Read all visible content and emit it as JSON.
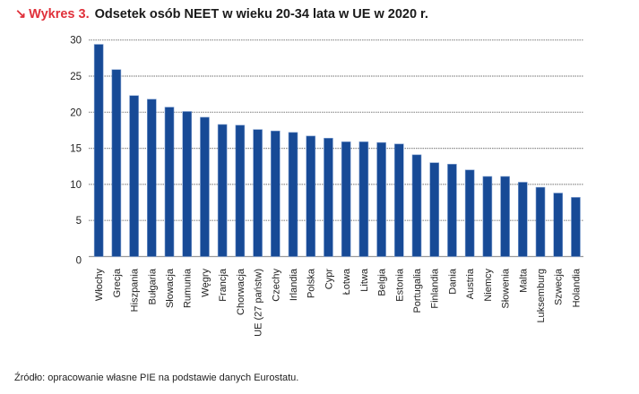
{
  "header": {
    "arrow_icon": "south-east-arrow-icon",
    "arrow_glyph": "↘",
    "figure_label": "Wykres 3.",
    "title": "Odsetek osób NEET w wieku 20-34 lata w UE w 2020 r."
  },
  "footer": {
    "source": "Źródło: opracowanie własne PIE na podstawie danych Eurostatu."
  },
  "colors": {
    "accent": "#e0303a",
    "bar": "#174a96",
    "grid": "#8c8c8c"
  },
  "chart_data": {
    "type": "bar",
    "title": "Odsetek osób NEET w wieku 20-34 lata w UE w 2020 r.",
    "xlabel": "",
    "ylabel": "",
    "ylim": [
      0,
      30
    ],
    "yticks": [
      "0",
      "5",
      "10",
      "15",
      "20",
      "25",
      "30"
    ],
    "grid": true,
    "legend": "none",
    "categories": [
      "Włochy",
      "Grecja",
      "Hiszpania",
      "Bułgaria",
      "Słowacja",
      "Rumunia",
      "Węgry",
      "Francja",
      "Chorwacja",
      "UE (27 państw)",
      "Czechy",
      "Irlandia",
      "Polska",
      "Cypr",
      "Łotwa",
      "Litwa",
      "Belgia",
      "Estonia",
      "Portugalia",
      "Finlandia",
      "Dania",
      "Austria",
      "Niemcy",
      "Słowenia",
      "Malta",
      "Luksemburg",
      "Szwecja",
      "Holandia"
    ],
    "values": [
      29.4,
      25.9,
      22.3,
      21.8,
      20.7,
      20.1,
      19.3,
      18.3,
      18.2,
      17.6,
      17.4,
      17.2,
      16.7,
      16.4,
      15.9,
      15.9,
      15.8,
      15.6,
      14.1,
      13.0,
      12.8,
      12.0,
      11.1,
      11.1,
      10.3,
      9.6,
      8.8,
      8.2
    ]
  }
}
